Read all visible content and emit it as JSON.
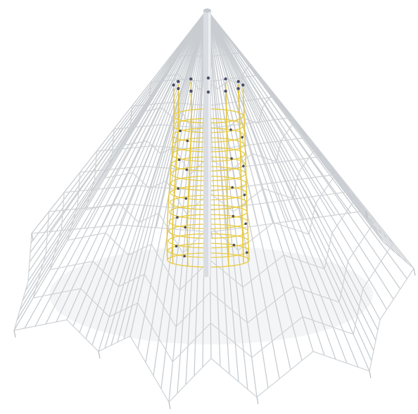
{
  "image": {
    "subject": "rope-pyramid-climbing-net",
    "colors": {
      "background": "#ffffff",
      "mast": "#d9dde1",
      "outer_rope": "#c9cdd1",
      "inner_rope": "#e3c53a",
      "knot": "#4a4f66"
    }
  }
}
